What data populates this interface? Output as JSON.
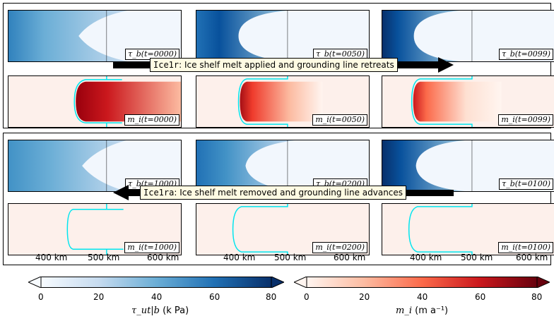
{
  "top_group": {
    "banner": {
      "code": "Ice1r",
      "text": ": Ice shelf melt applied and grounding line retreats"
    },
    "tau_labels": [
      "τ_b(t=0000)",
      "τ_b(t=0050)",
      "τ_b(t=0099)"
    ],
    "m_labels": [
      "m_i(t=0000)",
      "m_i(t=0050)",
      "m_i(t=0099)"
    ]
  },
  "bottom_group": {
    "banner": {
      "code": "Ice1ra",
      "text": ": Ice shelf melt removed and grounding line advances"
    },
    "tau_labels": [
      "τ_b(t=1000)",
      "τ_b(t=0200)",
      "τ_b(t=0100)"
    ],
    "m_labels": [
      "m_i(t=1000)",
      "m_i(t=0200)",
      "m_i(t=0100)"
    ]
  },
  "x_ticks": [
    "400 km",
    "500 km",
    "600 km"
  ],
  "colorbars": [
    {
      "name": "tau",
      "ticks": [
        "0",
        "20",
        "40",
        "60",
        "80"
      ],
      "label_symbol": "τ_ut|b",
      "label_unit": " (k Pa)",
      "colors": [
        "#f7fbff",
        "#c6dbef",
        "#6baed6",
        "#2171b5",
        "#08306b"
      ]
    },
    {
      "name": "melt",
      "ticks": [
        "0",
        "20",
        "40",
        "60",
        "80"
      ],
      "label_symbol": "m_i",
      "label_unit": " (m a⁻¹)",
      "colors": [
        "#fff5f0",
        "#fcbba1",
        "#fb6a4a",
        "#cb181d",
        "#67000d"
      ]
    }
  ],
  "colors": {
    "grounding_line": "#00e5ee",
    "arrow": "#000000",
    "banner_bg": "#fffbe3"
  }
}
